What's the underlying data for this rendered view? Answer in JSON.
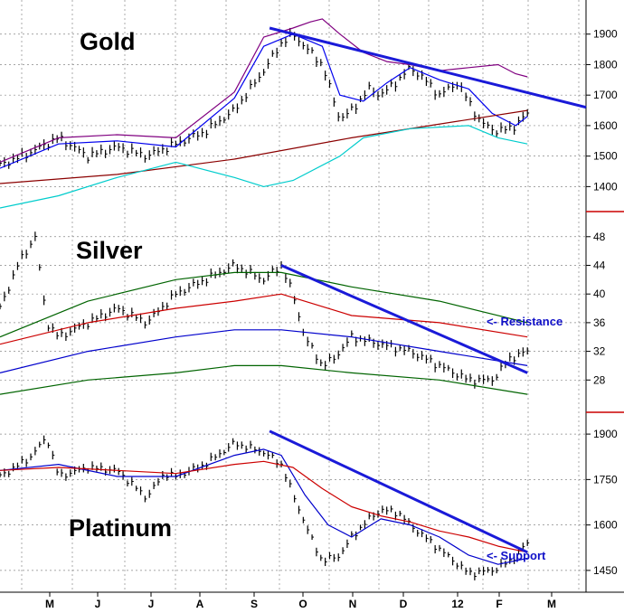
{
  "chart_data": [
    {
      "type": "line",
      "title": "Gold",
      "style": "ohlc-bars",
      "ylim": [
        1330,
        2000
      ],
      "yticks": [
        1400,
        1500,
        1600,
        1700,
        1800,
        1900
      ],
      "grid": true,
      "x_months": [
        "M",
        "J",
        "J",
        "A",
        "S",
        "O",
        "N",
        "D",
        "12",
        "F",
        "M"
      ],
      "series": [
        {
          "role": "price",
          "color": "#000000",
          "x": [
            0,
            5,
            10,
            15,
            20,
            25,
            30,
            35,
            40,
            45,
            48,
            50,
            52,
            55,
            58,
            60,
            63,
            65,
            68,
            70,
            72,
            75,
            78,
            80,
            82,
            85,
            88,
            90
          ],
          "y": [
            1470,
            1510,
            1560,
            1500,
            1530,
            1500,
            1540,
            1580,
            1650,
            1780,
            1870,
            1900,
            1860,
            1800,
            1620,
            1650,
            1720,
            1700,
            1750,
            1790,
            1760,
            1700,
            1740,
            1680,
            1610,
            1580,
            1600,
            1640
          ]
        },
        {
          "role": "upper-band",
          "color": "#800080",
          "x": [
            0,
            10,
            20,
            30,
            40,
            45,
            50,
            53,
            55,
            58,
            62,
            66,
            70,
            75,
            80,
            85,
            88,
            90
          ],
          "y": [
            1480,
            1560,
            1570,
            1560,
            1710,
            1890,
            1920,
            1940,
            1950,
            1900,
            1840,
            1810,
            1800,
            1780,
            1790,
            1800,
            1770,
            1760
          ]
        },
        {
          "role": "moving-average-short",
          "color": "#0000ee",
          "x": [
            0,
            10,
            20,
            30,
            40,
            45,
            50,
            55,
            58,
            62,
            66,
            70,
            75,
            80,
            84,
            88,
            90
          ],
          "y": [
            1460,
            1540,
            1550,
            1530,
            1690,
            1860,
            1900,
            1860,
            1700,
            1680,
            1740,
            1790,
            1750,
            1720,
            1640,
            1600,
            1630
          ]
        },
        {
          "role": "moving-average-long",
          "color": "#8b0000",
          "x": [
            0,
            20,
            40,
            60,
            80,
            90
          ],
          "y": [
            1410,
            1440,
            1490,
            1560,
            1620,
            1650
          ]
        },
        {
          "role": "lower-band",
          "color": "#00cccc",
          "x": [
            0,
            10,
            20,
            30,
            40,
            45,
            50,
            58,
            62,
            70,
            80,
            85,
            90
          ],
          "y": [
            1330,
            1370,
            1430,
            1480,
            1430,
            1400,
            1420,
            1500,
            1560,
            1590,
            1600,
            1560,
            1540
          ]
        },
        {
          "role": "resistance-trendline",
          "color": "#1a1ad8",
          "x": [
            46,
            100
          ],
          "y": [
            1920,
            1660
          ]
        }
      ]
    },
    {
      "type": "line",
      "title": "Silver",
      "style": "ohlc-bars",
      "ylim": [
        24,
        51
      ],
      "yticks": [
        28,
        32,
        36,
        40,
        44,
        48
      ],
      "grid": true,
      "annotations": [
        "<- Resistance"
      ],
      "series": [
        {
          "role": "price",
          "color": "#000000",
          "x": [
            0,
            3,
            6,
            8,
            10,
            15,
            20,
            25,
            30,
            35,
            40,
            45,
            48,
            50,
            52,
            55,
            57,
            60,
            65,
            70,
            75,
            80,
            84,
            87,
            90
          ],
          "y": [
            38,
            44,
            48,
            36,
            34,
            36,
            38,
            36,
            40,
            42,
            44,
            42,
            44,
            40,
            34,
            30,
            31,
            34,
            33,
            32,
            30,
            28,
            28,
            31,
            32
          ]
        },
        {
          "role": "upper-band",
          "color": "#006400",
          "x": [
            0,
            15,
            30,
            40,
            48,
            60,
            75,
            90
          ],
          "y": [
            34,
            39,
            42,
            43,
            43,
            41,
            39,
            36
          ]
        },
        {
          "role": "moving-average",
          "color": "#cc0000",
          "x": [
            0,
            15,
            30,
            40,
            48,
            60,
            75,
            90
          ],
          "y": [
            33,
            36,
            38,
            39,
            40,
            37,
            36,
            34
          ]
        },
        {
          "role": "mid-band",
          "color": "#0000cc",
          "x": [
            0,
            15,
            30,
            40,
            48,
            60,
            75,
            90
          ],
          "y": [
            29,
            32,
            34,
            35,
            35,
            34,
            32,
            30
          ]
        },
        {
          "role": "lower-band",
          "color": "#006400",
          "x": [
            0,
            15,
            30,
            40,
            48,
            60,
            75,
            90
          ],
          "y": [
            26,
            28,
            29,
            30,
            30,
            29,
            28,
            26
          ]
        },
        {
          "role": "resistance-trendline",
          "color": "#1a1ad8",
          "x": [
            48,
            90
          ],
          "y": [
            44,
            29
          ]
        }
      ]
    },
    {
      "type": "line",
      "title": "Platinum",
      "style": "ohlc-bars",
      "ylim": [
        1390,
        1960
      ],
      "yticks": [
        1450,
        1600,
        1750,
        1900
      ],
      "grid": true,
      "annotations": [
        "<- Support"
      ],
      "series": [
        {
          "role": "price",
          "color": "#000000",
          "x": [
            0,
            5,
            8,
            10,
            15,
            20,
            25,
            28,
            30,
            35,
            40,
            45,
            48,
            50,
            53,
            55,
            58,
            60,
            63,
            65,
            68,
            70,
            75,
            80,
            84,
            87,
            90
          ],
          "y": [
            1760,
            1820,
            1890,
            1760,
            1790,
            1780,
            1690,
            1770,
            1760,
            1800,
            1870,
            1840,
            1800,
            1700,
            1560,
            1480,
            1500,
            1560,
            1620,
            1650,
            1640,
            1600,
            1520,
            1440,
            1450,
            1480,
            1540
          ]
        },
        {
          "role": "moving-average-short",
          "color": "#0000cc",
          "x": [
            0,
            10,
            20,
            30,
            40,
            45,
            48,
            52,
            56,
            60,
            65,
            70,
            75,
            80,
            85,
            90
          ],
          "y": [
            1780,
            1800,
            1760,
            1760,
            1830,
            1850,
            1830,
            1700,
            1600,
            1560,
            1620,
            1600,
            1560,
            1500,
            1470,
            1490
          ]
        },
        {
          "role": "moving-average-long",
          "color": "#cc0000",
          "x": [
            0,
            10,
            20,
            30,
            40,
            45,
            50,
            55,
            60,
            65,
            70,
            75,
            80,
            85,
            90
          ],
          "y": [
            1780,
            1790,
            1780,
            1770,
            1800,
            1810,
            1790,
            1720,
            1660,
            1630,
            1610,
            1580,
            1560,
            1530,
            1510
          ]
        },
        {
          "role": "support-trendline",
          "color": "#1a1ad8",
          "x": [
            46,
            90
          ],
          "y": [
            1910,
            1510
          ]
        }
      ]
    }
  ]
}
